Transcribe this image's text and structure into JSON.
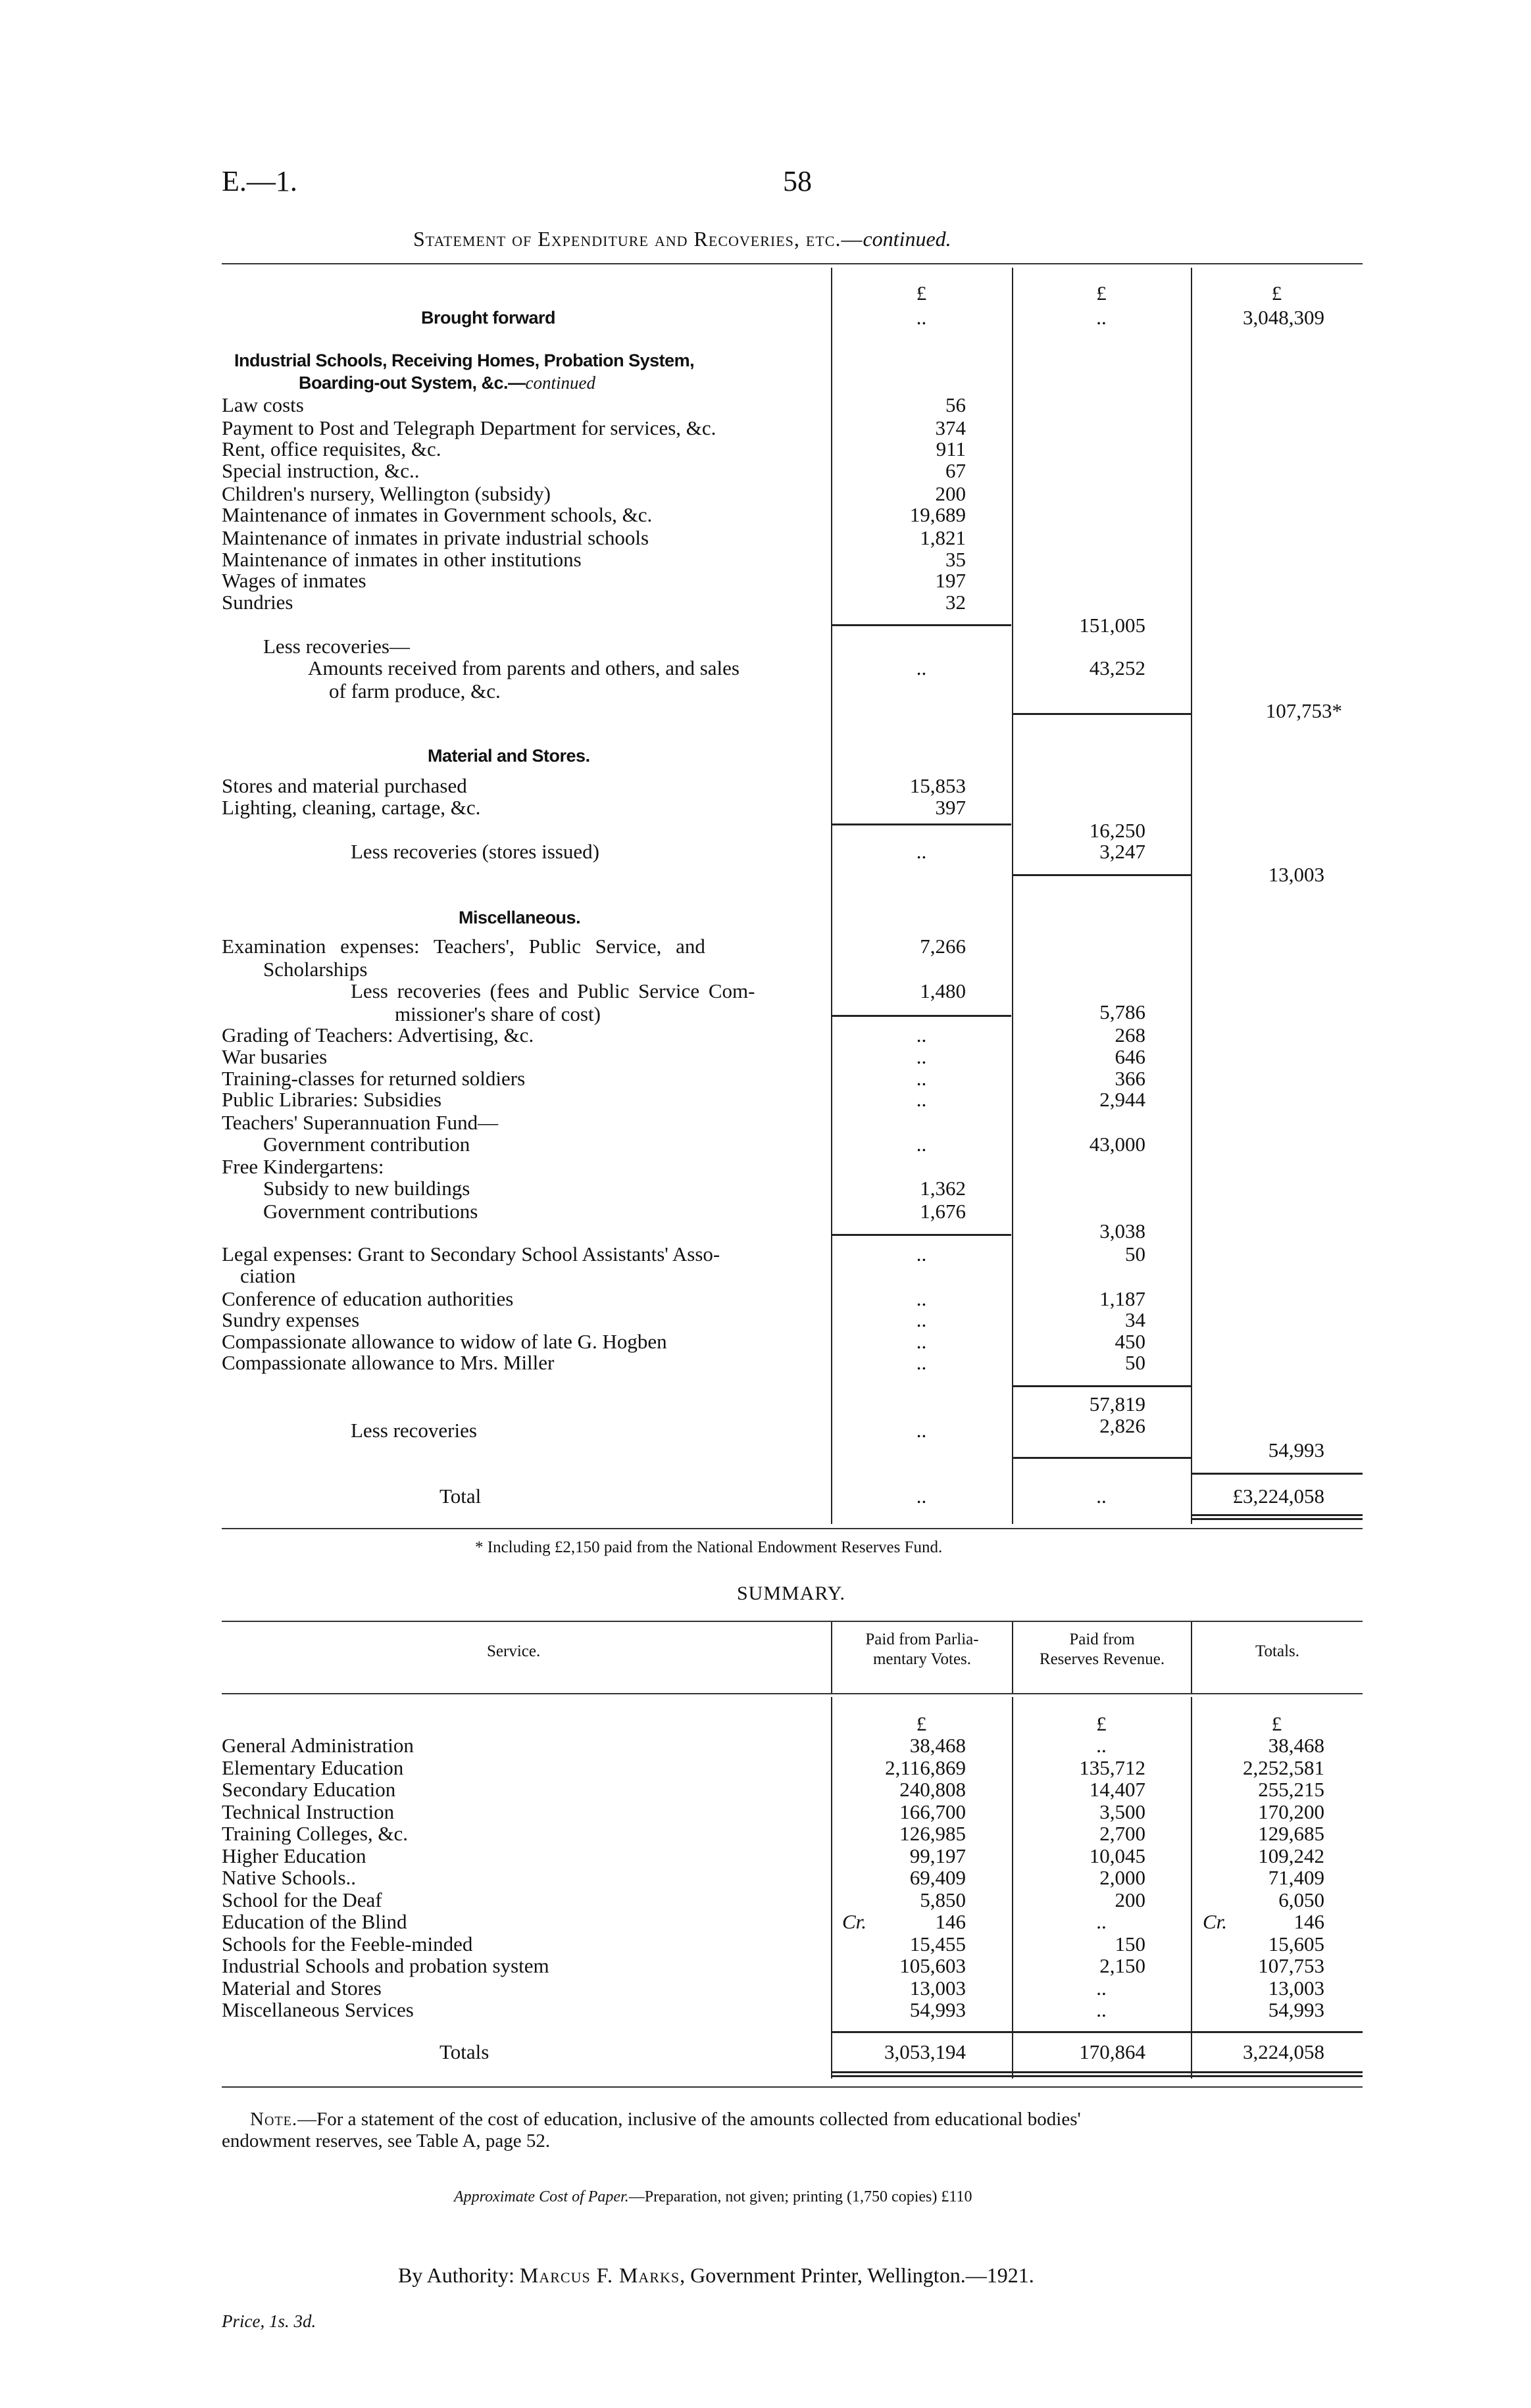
{
  "header": {
    "ref": "E.—1.",
    "page_number": "58",
    "title": "Statement of Expenditure and Recoveries, etc.—",
    "title_cont": "continued."
  },
  "statement": {
    "currency": "£",
    "brought_forward": {
      "label": "Brought forward",
      "c1": "..",
      "c2": "..",
      "c3": "3,048,309"
    },
    "industrial": {
      "heading": "Industrial Schools, Receiving Homes, Probation System,",
      "heading2": "Boarding-out System, &c.—",
      "heading_cont": "continued",
      "items": [
        {
          "label": "Law costs",
          "value": "56"
        },
        {
          "label": "Payment to Post and Telegraph Department for services, &c.",
          "value": "374"
        },
        {
          "label": "Rent, office requisites, &c.",
          "value": "911"
        },
        {
          "label": "Special instruction, &c..",
          "value": "67"
        },
        {
          "label": "Children's nursery, Wellington (subsidy)",
          "value": "200"
        },
        {
          "label": "Maintenance of inmates in Government schools, &c.",
          "value": "19,689"
        },
        {
          "label": "Maintenance of inmates in private industrial schools",
          "value": "1,821"
        },
        {
          "label": "Maintenance of inmates in other institutions",
          "value": "35"
        },
        {
          "label": "Wages of inmates",
          "value": "197"
        },
        {
          "label": "Sundries",
          "value": "32"
        }
      ],
      "subtotal": "151,005",
      "less_label": "Less recoveries—",
      "recov_label": "Amounts received from parents and others, and sales",
      "recov_label2": "of farm produce, &c.",
      "recov_c1": "..",
      "recov_c2": "43,252",
      "net": "107,753*"
    },
    "material": {
      "heading": "Material and Stores.",
      "items": [
        {
          "label": "Stores and material purchased",
          "value": "15,853"
        },
        {
          "label": "Lighting, cleaning, cartage, &c.",
          "value": "397"
        }
      ],
      "subtotal": "16,250",
      "less_label": "Less recoveries (stores issued)",
      "less_c1": "..",
      "less_c2": "3,247",
      "net": "13,003"
    },
    "misc": {
      "heading": "Miscellaneous.",
      "exam_label": "Examination expenses: Teachers', Public Service, and",
      "exam_label2": "Scholarships",
      "exam_value": "7,266",
      "exam_less_label": "Less recoveries (fees and Public Service Com-",
      "exam_less_label2": "missioner's share of cost)",
      "exam_less_value": "1,480",
      "exam_net": "5,786",
      "items": [
        {
          "label": "Grading of Teachers: Advertising, &c.",
          "c1": "..",
          "c2": "268"
        },
        {
          "label": "War busaries",
          "c1": "..",
          "c2": "646"
        },
        {
          "label": "Training-classes for returned soldiers",
          "c1": "..",
          "c2": "366"
        },
        {
          "label": "Public Libraries: Subsidies",
          "c1": "..",
          "c2": "2,944"
        }
      ],
      "super_label": "Teachers' Superannuation Fund—",
      "super_sub_label": "Government contribution",
      "super_c1": "..",
      "super_c2": "43,000",
      "kind_label": "Free Kindergartens:",
      "kind_items": [
        {
          "label": "Subsidy to new buildings",
          "value": "1,362"
        },
        {
          "label": "Government contributions",
          "value": "1,676"
        }
      ],
      "kind_net": "3,038",
      "legal_label": "Legal expenses: Grant to Secondary School Assistants' Asso-",
      "legal_label2": "ciation",
      "legal_c1": "..",
      "legal_c2": "50",
      "items2": [
        {
          "label": "Conference of education authorities",
          "c1": "..",
          "c2": "1,187"
        },
        {
          "label": "Sundry expenses",
          "c1": "..",
          "c2": "34"
        },
        {
          "label": "Compassionate allowance to widow of late G. Hogben",
          "c1": "..",
          "c2": "450"
        },
        {
          "label": "Compassionate allowance to Mrs. Miller",
          "c1": "..",
          "c2": "50"
        }
      ],
      "subtotal": "57,819",
      "less_label": "Less recoveries",
      "less_c1": "..",
      "less_c2": "2,826",
      "net": "54,993"
    },
    "total": {
      "label": "Total",
      "c1": "..",
      "c2": "..",
      "c3": "£3,224,058"
    },
    "footnote": "* Including £2,150 paid from the National Endowment Reserves Fund."
  },
  "summary": {
    "title": "SUMMARY.",
    "columns": [
      "Service.",
      "Paid from Parlia-",
      "mentary Votes.",
      "Paid from",
      "Reserves Revenue.",
      "Totals."
    ],
    "currency": "£",
    "credit_prefix": "Cr.",
    "rows": [
      {
        "service": "General Administration",
        "votes": "38,468",
        "reserves": "..",
        "total": "38,468"
      },
      {
        "service": "Elementary Education",
        "votes": "2,116,869",
        "reserves": "135,712",
        "total": "2,252,581"
      },
      {
        "service": "Secondary Education",
        "votes": "240,808",
        "reserves": "14,407",
        "total": "255,215"
      },
      {
        "service": "Technical Instruction",
        "votes": "166,700",
        "reserves": "3,500",
        "total": "170,200"
      },
      {
        "service": "Training Colleges, &c.",
        "votes": "126,985",
        "reserves": "2,700",
        "total": "129,685"
      },
      {
        "service": "Higher Education",
        "votes": "99,197",
        "reserves": "10,045",
        "total": "109,242"
      },
      {
        "service": "Native Schools..",
        "votes": "69,409",
        "reserves": "2,000",
        "total": "71,409"
      },
      {
        "service": "School for the Deaf",
        "votes": "5,850",
        "reserves": "200",
        "total": "6,050"
      },
      {
        "service": "Education of the Blind",
        "votes": "146",
        "reserves": "..",
        "total": "146"
      },
      {
        "service": "Schools for the Feeble-minded",
        "votes": "15,455",
        "reserves": "150",
        "total": "15,605"
      },
      {
        "service": "Industrial Schools and probation system",
        "votes": "105,603",
        "reserves": "2,150",
        "total": "107,753"
      },
      {
        "service": "Material and Stores",
        "votes": "13,003",
        "reserves": "..",
        "total": "13,003"
      },
      {
        "service": "Miscellaneous Services",
        "votes": "54,993",
        "reserves": "..",
        "total": "54,993"
      }
    ],
    "totals": {
      "label": "Totals",
      "votes": "3,053,194",
      "reserves": "170,864",
      "total": "3,224,058"
    }
  },
  "note": {
    "lead": "Note.",
    "text1": "—For a statement of the cost of education, inclusive of the amounts collected from educational bodies'",
    "text2": "endowment reserves, see Table A, page 52."
  },
  "cost": {
    "lead": "Approximate Cost of Paper.",
    "text": "—Preparation, not given; printing (1,750 copies) £110"
  },
  "imprint": {
    "prefix": "By Authority:",
    "printer": "Marcus F. Marks",
    "suffix": ", Government Printer, Wellington.—1921."
  },
  "price": "Price, 1s. 3d."
}
